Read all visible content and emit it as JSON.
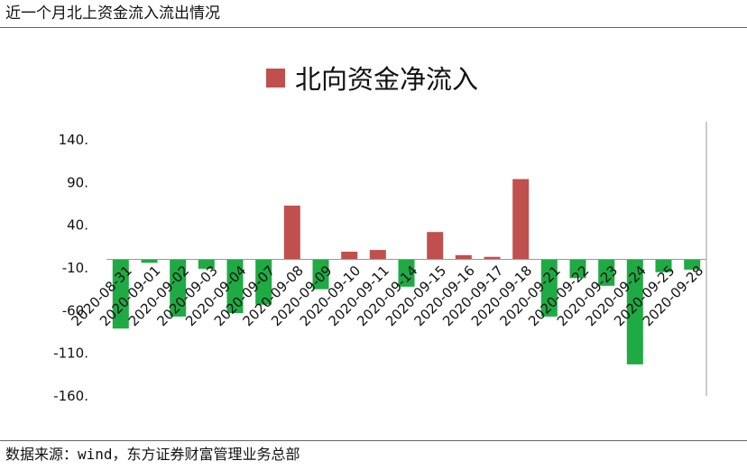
{
  "header": {
    "title": "近一个月北上资金流入流出情况"
  },
  "footer": {
    "source": "数据来源：wind，东方证券财富管理业务总部"
  },
  "colors": {
    "positive": "#c0504d",
    "negative": "#1faa43",
    "axis": "#999999"
  },
  "chart_data": {
    "type": "bar",
    "title": "",
    "legend": {
      "position": "top-center",
      "entries": [
        "北向资金净流入"
      ]
    },
    "series": [
      {
        "name": "北向资金净流入",
        "values": [
          -81,
          -4,
          -67,
          -11,
          -63,
          -53,
          63,
          -35,
          9,
          11,
          -32,
          32,
          5,
          3,
          94,
          -67,
          -22,
          -31,
          -123,
          -15,
          -12
        ]
      }
    ],
    "categories": [
      "2020-08-31",
      "2020-09-01",
      "2020-09-02",
      "2020-09-03",
      "2020-09-04",
      "2020-09-07",
      "2020-09-08",
      "2020-09-09",
      "2020-09-10",
      "2020-09-11",
      "2020-09-14",
      "2020-09-15",
      "2020-09-16",
      "2020-09-17",
      "2020-09-18",
      "2020-09-21",
      "2020-09-22",
      "2020-09-23",
      "2020-09-24",
      "2020-09-25",
      "2020-09-28"
    ],
    "yticks": [
      "140.",
      "90.",
      "40.",
      "-10.",
      "-60.",
      "-110.",
      "-160."
    ],
    "ytick_values": [
      140,
      90,
      40,
      -10,
      -60,
      -110,
      -160
    ],
    "ylim": [
      -160,
      140
    ],
    "xlabel": "",
    "ylabel": "",
    "grid": false
  }
}
